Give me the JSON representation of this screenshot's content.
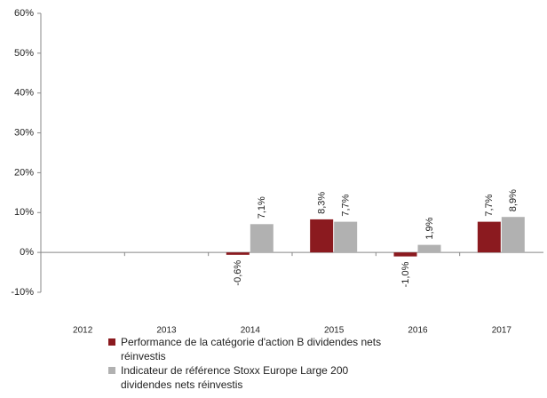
{
  "chart_data": {
    "type": "bar",
    "categories": [
      "2012",
      "2013",
      "2014",
      "2015",
      "2016",
      "2017"
    ],
    "series": [
      {
        "name": "Performance de la catégorie d'action B dividendes nets réinvestis",
        "color": "#8b1a1f",
        "values": [
          null,
          null,
          -0.6,
          8.3,
          -1.0,
          7.7
        ],
        "value_labels": [
          null,
          null,
          "-0,6%",
          "8,3%",
          "-1,0%",
          "7,7%"
        ]
      },
      {
        "name": "Indicateur de référence Stoxx Europe Large 200 dividendes nets réinvestis",
        "color": "#b1b1b1",
        "values": [
          null,
          null,
          7.1,
          7.7,
          1.9,
          8.9
        ],
        "value_labels": [
          null,
          null,
          "7,1%",
          "7,7%",
          "1,9%",
          "8,9%"
        ]
      }
    ],
    "ylim": [
      -10,
      60
    ],
    "yticks": [
      {
        "value": -10,
        "label": "-10%"
      },
      {
        "value": 0,
        "label": "0%"
      },
      {
        "value": 10,
        "label": "10%"
      },
      {
        "value": 20,
        "label": "20%"
      },
      {
        "value": 30,
        "label": "30%"
      },
      {
        "value": 40,
        "label": "40%"
      },
      {
        "value": 50,
        "label": "50%"
      },
      {
        "value": 60,
        "label": "60%"
      }
    ],
    "grid": false,
    "legend": "bottom"
  }
}
